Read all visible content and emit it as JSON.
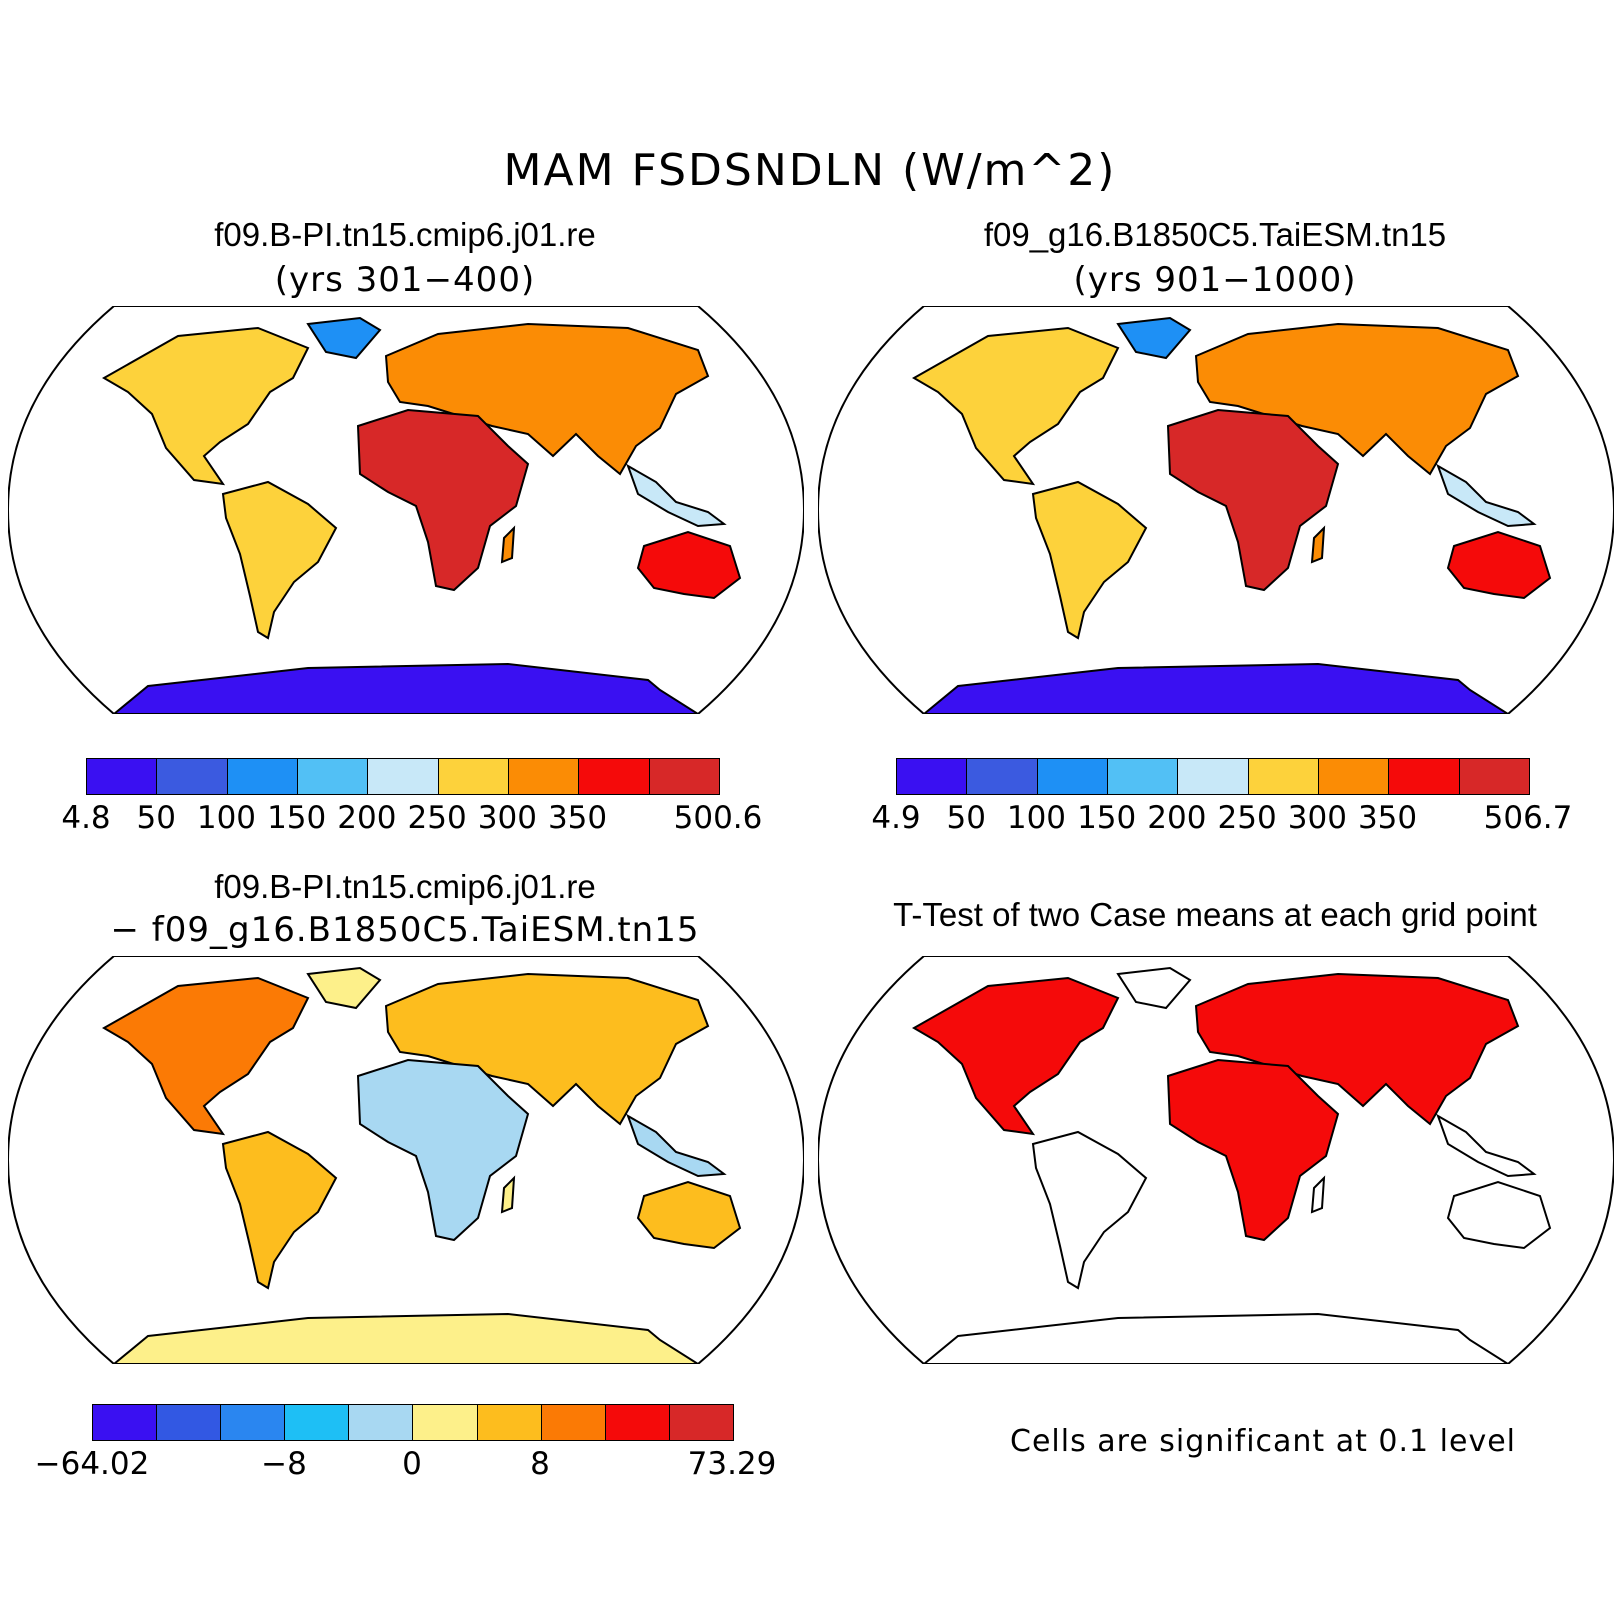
{
  "title": "MAM FSDSNDLN (W/m^2)",
  "panels": {
    "case1": {
      "title": "f09.B-PI.tn15.cmip6.j01.re",
      "subtitle": "(yrs 301−400)",
      "colorbar": {
        "colors": [
          "#3a10f2",
          "#3b5ae0",
          "#1e90f5",
          "#52c0f5",
          "#c8e8f8",
          "#fdd23b",
          "#fb8c05",
          "#f50a0a",
          "#d72828"
        ],
        "labels": [
          "4.8",
          "50",
          "100",
          "150",
          "200",
          "250",
          "300",
          "350",
          "",
          "500.6"
        ]
      }
    },
    "case2": {
      "title": "f09_g16.B1850C5.TaiESM.tn15",
      "subtitle": "(yrs 901−1000)",
      "colorbar": {
        "colors": [
          "#3a10f2",
          "#3b5ae0",
          "#1e90f5",
          "#52c0f5",
          "#c8e8f8",
          "#fdd23b",
          "#fb8c05",
          "#f50a0a",
          "#d72828"
        ],
        "labels": [
          "4.9",
          "50",
          "100",
          "150",
          "200",
          "250",
          "300",
          "350",
          "",
          "506.7"
        ]
      }
    },
    "diff": {
      "title": "f09.B-PI.tn15.cmip6.j01.re",
      "subtitle": "− f09_g16.B1850C5.TaiESM.tn15",
      "colorbar": {
        "colors": [
          "#3a10f2",
          "#3258e3",
          "#2a86f0",
          "#1ebff5",
          "#a8d8f2",
          "#fdf08a",
          "#fdbd1e",
          "#fb7a05",
          "#f50a0a",
          "#d72828"
        ],
        "labels": [
          "−64.02",
          "",
          "",
          "−8",
          "",
          "0",
          "",
          "8",
          "",
          "",
          "73.29"
        ]
      }
    },
    "ttest": {
      "title": "T-Test of two Case means at each grid point",
      "note": "Cells are significant at 0.1 level",
      "significant_color": "#f50a0a"
    }
  }
}
